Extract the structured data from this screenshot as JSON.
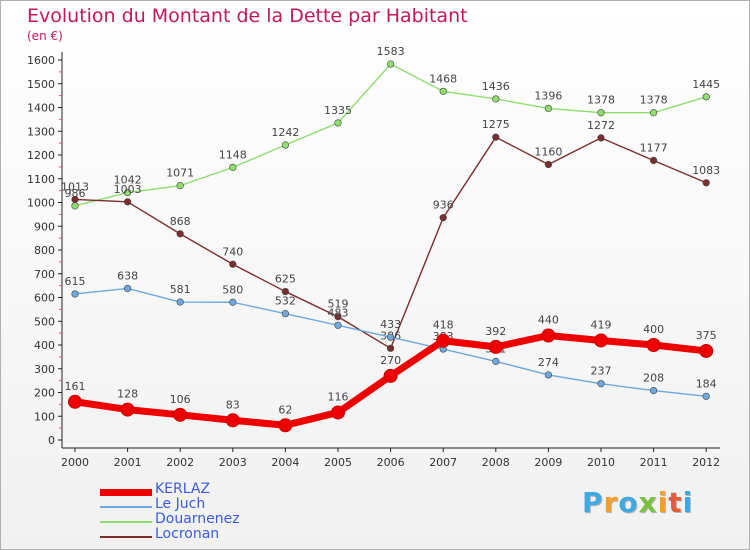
{
  "title": "Evolution du Montant de la Dette par Habitant",
  "subtitle": "(en €)",
  "brand": {
    "letters": [
      "P",
      "r",
      "o",
      "x",
      "i",
      "t",
      "i"
    ],
    "colors": [
      "#3fa9e0",
      "#f2a02a",
      "#3fa9e0",
      "#7ac143",
      "#f2a02a",
      "#e65c3b",
      "#3fa9e0"
    ]
  },
  "chart_data": {
    "type": "line",
    "categories": [
      "2000",
      "2001",
      "2002",
      "2003",
      "2004",
      "2005",
      "2006",
      "2007",
      "2008",
      "2009",
      "2010",
      "2011",
      "2012"
    ],
    "ylim": [
      0,
      1600
    ],
    "yticks": [
      0,
      100,
      200,
      300,
      400,
      500,
      600,
      700,
      800,
      900,
      1000,
      1100,
      1200,
      1300,
      1400,
      1500,
      1600
    ],
    "grid": false,
    "legend_position": "bottom-left",
    "series": [
      {
        "name": "KERLAZ",
        "color": "#ee0000",
        "values": [
          161,
          128,
          106,
          83,
          62,
          116,
          270,
          418,
          392,
          440,
          419,
          400,
          375
        ]
      },
      {
        "name": "Le Juch",
        "color": "#6fa8dc",
        "values": [
          615,
          638,
          581,
          580,
          532,
          483,
          433,
          383,
          331,
          274,
          237,
          208,
          184
        ]
      },
      {
        "name": "Douarnenez",
        "color": "#8fdd6f",
        "values": [
          986,
          1042,
          1071,
          1148,
          1242,
          1335,
          1583,
          1468,
          1436,
          1396,
          1378,
          1378,
          1445
        ]
      },
      {
        "name": "Locronan",
        "color": "#7a2e2e",
        "values": [
          1013,
          1003,
          868,
          740,
          625,
          519,
          386,
          936,
          1275,
          1160,
          1272,
          1177,
          1083
        ]
      }
    ]
  }
}
